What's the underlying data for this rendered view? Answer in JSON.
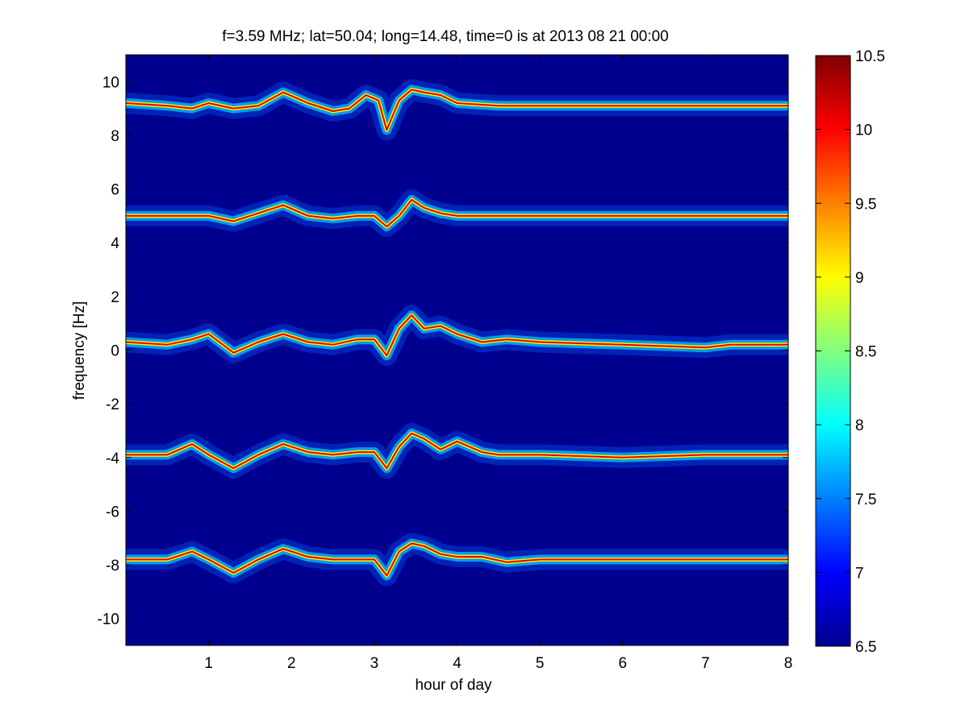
{
  "chart_data": {
    "type": "heatmap",
    "title": "f=3.59 MHz;  lat=50.04; long=14.48, time=0 is at 2013 08 21 00:00",
    "xlabel": "hour of day",
    "ylabel": "frequency [Hz]",
    "xlim": [
      0,
      8
    ],
    "ylim": [
      -11,
      11
    ],
    "xticks": [
      1,
      2,
      3,
      4,
      5,
      6,
      7,
      8
    ],
    "yticks": [
      -10,
      -8,
      -6,
      -4,
      -2,
      0,
      2,
      4,
      6,
      8,
      10
    ],
    "colorbar": {
      "colormap": "jet",
      "clim": [
        6.5,
        10.5
      ],
      "ticks": [
        6.5,
        7,
        7.5,
        8,
        8.5,
        9,
        9.5,
        10,
        10.5
      ]
    },
    "series": [
      {
        "x": [
          0,
          0.5,
          0.8,
          1.0,
          1.3,
          1.6,
          1.9,
          2.2,
          2.5,
          2.7,
          2.9,
          3.05,
          3.15,
          3.3,
          3.45,
          3.6,
          3.8,
          4.0,
          4.5,
          5,
          6,
          7,
          8
        ],
        "y": [
          9.2,
          9.1,
          9.0,
          9.2,
          9.0,
          9.1,
          9.6,
          9.2,
          8.9,
          9.0,
          9.5,
          9.3,
          8.2,
          9.3,
          9.7,
          9.6,
          9.5,
          9.2,
          9.1,
          9.1,
          9.1,
          9.1,
          9.1
        ]
      },
      {
        "x": [
          0,
          0.5,
          1.0,
          1.3,
          1.6,
          1.9,
          2.2,
          2.5,
          2.8,
          3.0,
          3.15,
          3.3,
          3.45,
          3.6,
          3.8,
          4.0,
          4.5,
          5,
          6,
          7,
          8
        ],
        "y": [
          5.0,
          5.0,
          5.0,
          4.8,
          5.1,
          5.4,
          5.0,
          4.9,
          5.0,
          5.0,
          4.6,
          5.0,
          5.6,
          5.3,
          5.1,
          5.0,
          5.0,
          5.0,
          5.0,
          5.0,
          5.0
        ]
      },
      {
        "x": [
          0,
          0.5,
          0.8,
          1.0,
          1.3,
          1.6,
          1.9,
          2.2,
          2.5,
          2.8,
          3.0,
          3.15,
          3.3,
          3.45,
          3.6,
          3.8,
          4.0,
          4.3,
          4.6,
          5,
          6,
          7,
          7.3,
          8
        ],
        "y": [
          0.3,
          0.2,
          0.4,
          0.6,
          -0.1,
          0.3,
          0.6,
          0.3,
          0.2,
          0.4,
          0.4,
          -0.2,
          0.8,
          1.3,
          0.8,
          0.9,
          0.6,
          0.3,
          0.4,
          0.3,
          0.2,
          0.1,
          0.2,
          0.2
        ]
      },
      {
        "x": [
          0,
          0.5,
          0.8,
          1.0,
          1.3,
          1.6,
          1.9,
          2.2,
          2.5,
          2.8,
          3.0,
          3.15,
          3.3,
          3.45,
          3.6,
          3.8,
          4.0,
          4.3,
          4.5,
          5,
          6,
          7,
          8
        ],
        "y": [
          -3.9,
          -3.9,
          -3.5,
          -3.9,
          -4.4,
          -3.9,
          -3.5,
          -3.8,
          -3.9,
          -3.8,
          -3.8,
          -4.4,
          -3.6,
          -3.1,
          -3.3,
          -3.7,
          -3.4,
          -3.8,
          -3.9,
          -3.9,
          -4.0,
          -3.9,
          -3.9
        ]
      },
      {
        "x": [
          0,
          0.5,
          0.8,
          1.0,
          1.3,
          1.6,
          1.9,
          2.2,
          2.5,
          2.8,
          3.0,
          3.15,
          3.3,
          3.45,
          3.6,
          3.8,
          4.0,
          4.3,
          4.6,
          5,
          6,
          7,
          8
        ],
        "y": [
          -7.8,
          -7.8,
          -7.5,
          -7.8,
          -8.3,
          -7.8,
          -7.4,
          -7.7,
          -7.8,
          -7.8,
          -7.8,
          -8.4,
          -7.5,
          -7.2,
          -7.3,
          -7.6,
          -7.7,
          -7.7,
          -7.9,
          -7.8,
          -7.8,
          -7.8,
          -7.8
        ]
      }
    ]
  }
}
